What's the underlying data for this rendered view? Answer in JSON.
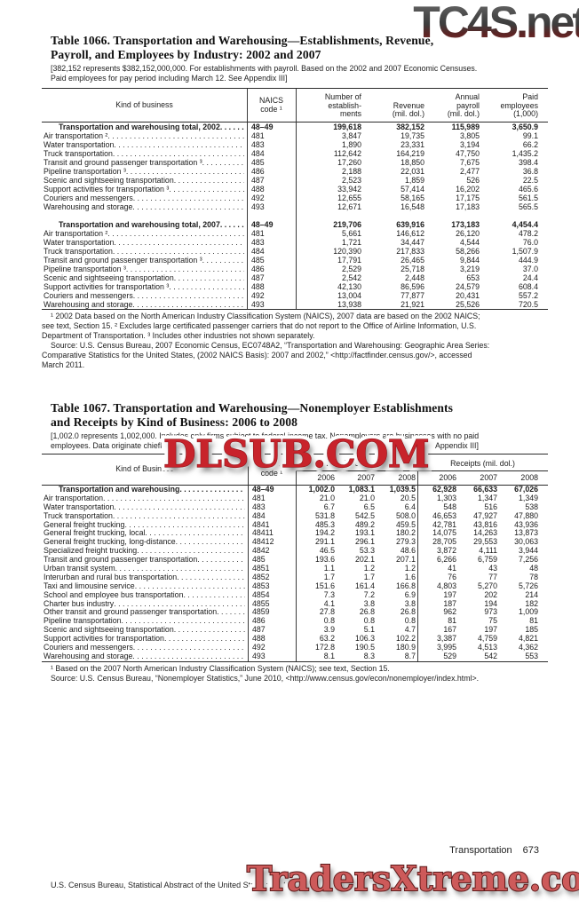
{
  "watermarks": {
    "top": "TC4S.net",
    "middle": "DLSUB.COM",
    "bottom": "TradersXtreme.com"
  },
  "table1066": {
    "title_lines": [
      "Table 1066. Transportation and Warehousing—Establishments, Revenue,",
      "Payroll, and Employees by Industry: 2002 and 2007"
    ],
    "note_lines": [
      "[382,152 represents $382,152,000,000. For establishments with payroll. Based on the 2002 and 2007 Economic Censuses.",
      "Paid employees for pay period including March 12. See Appendix III]"
    ],
    "header": {
      "kind": "Kind of business",
      "naics": "NAICS\ncode ¹",
      "cols": [
        "Number of\nestablish-\nments",
        "Revenue\n(mil. dol.)",
        "Annual\npayroll\n(mil. dol.)",
        "Paid\nemployees\n(1,000)"
      ]
    },
    "sections": [
      {
        "rows": [
          {
            "label": "Transportation and warehousing total, 2002",
            "naics": "48–49",
            "bold": true,
            "values": [
              "199,618",
              "382,152",
              "115,989",
              "3,650.9"
            ]
          },
          {
            "label": "Air transportation ²",
            "naics": "481",
            "values": [
              "3,847",
              "19,735",
              "3,805",
              "99.1"
            ]
          },
          {
            "label": "Water transportation",
            "naics": "483",
            "values": [
              "1,890",
              "23,331",
              "3,194",
              "66.2"
            ]
          },
          {
            "label": "Truck transportation",
            "naics": "484",
            "values": [
              "112,642",
              "164,219",
              "47,750",
              "1,435.2"
            ]
          },
          {
            "label": "Transit and ground passenger transportation ³",
            "naics": "485",
            "values": [
              "17,260",
              "18,850",
              "7,675",
              "398.4"
            ]
          },
          {
            "label": "Pipeline transportation ³",
            "naics": "486",
            "values": [
              "2,188",
              "22,031",
              "2,477",
              "36.8"
            ]
          },
          {
            "label": "Scenic and sightseeing transportation",
            "naics": "487",
            "values": [
              "2,523",
              "1,859",
              "526",
              "22.5"
            ]
          },
          {
            "label": "Support activities for transportation ³",
            "naics": "488",
            "values": [
              "33,942",
              "57,414",
              "16,202",
              "465.6"
            ]
          },
          {
            "label": "Couriers and messengers",
            "naics": "492",
            "values": [
              "12,655",
              "58,165",
              "17,175",
              "561.5"
            ]
          },
          {
            "label": "Warehousing and storage",
            "naics": "493",
            "values": [
              "12,671",
              "16,548",
              "17,183",
              "565.5"
            ]
          }
        ]
      },
      {
        "rows": [
          {
            "label": "Transportation and warehousing total, 2007",
            "naics": "48–49",
            "bold": true,
            "values": [
              "219,706",
              "639,916",
              "173,183",
              "4,454.4"
            ]
          },
          {
            "label": "Air transportation ²",
            "naics": "481",
            "values": [
              "5,661",
              "146,612",
              "26,120",
              "478.2"
            ]
          },
          {
            "label": "Water transportation",
            "naics": "483",
            "values": [
              "1,721",
              "34,447",
              "4,544",
              "76.0"
            ]
          },
          {
            "label": "Truck transportation",
            "naics": "484",
            "values": [
              "120,390",
              "217,833",
              "58,266",
              "1,507.9"
            ]
          },
          {
            "label": "Transit and ground passenger transportation ³",
            "naics": "485",
            "values": [
              "17,791",
              "26,465",
              "9,844",
              "444.9"
            ]
          },
          {
            "label": "Pipeline transportation ³",
            "naics": "486",
            "values": [
              "2,529",
              "25,718",
              "3,219",
              "37.0"
            ]
          },
          {
            "label": "Scenic and sightseeing transportation",
            "naics": "487",
            "values": [
              "2,542",
              "2,448",
              "653",
              "24.4"
            ]
          },
          {
            "label": "Support activities for transportation ³",
            "naics": "488",
            "values": [
              "42,130",
              "86,596",
              "24,579",
              "608.4"
            ]
          },
          {
            "label": "Couriers and messengers",
            "naics": "492",
            "values": [
              "13,004",
              "77,877",
              "20,431",
              "557.2"
            ]
          },
          {
            "label": "Warehousing and storage",
            "naics": "493",
            "values": [
              "13,938",
              "21,921",
              "25,526",
              "720.5"
            ]
          }
        ]
      }
    ],
    "footnote_lines": [
      "¹ 2002 Data based on the North American Industry Classification System (NAICS), 2007 data are based on the 2002 NAICS;",
      "see text, Section 15. ² Excludes large certificated passenger carriers that do not report to the Office of Airline Information, U.S.",
      "Department of Transportation. ³ Includes other industries not shown separately."
    ],
    "source_lines": [
      "Source: U.S. Census Bureau, 2007 Economic Census, EC0748A2, “Transportation and Warehousing: Geographic Area Series:",
      "Comparative Statistics for the United States, (2002 NAICS Basis): 2007 and 2002,” <http://factfinder.census.gov/>, accessed",
      "March 2011."
    ]
  },
  "table1067": {
    "title_lines": [
      "Table 1067. Transportation and Warehousing—Nonemployer Establishments",
      "and Receipts by Kind of Business: 2006 to 2008"
    ],
    "note_line1": "[1,002.0 represents 1,002,000. Includes only firms subject to federal income tax. Nonemployers are businesses with no paid",
    "note_line2_left": "employees. Data originate chiefl",
    "note_line2_right": "Appendix III]",
    "header": {
      "kind": "Kind of Business",
      "naics": "NAICS\ncode ¹",
      "group_establishments": "Establishments (1,000)",
      "group_receipts": "Receipts (mil. dol.)",
      "years": [
        "2006",
        "2007",
        "2008"
      ]
    },
    "rows": [
      {
        "label": "Transportation and warehousing",
        "naics": "48–49",
        "bold": true,
        "values": [
          "1,002.0",
          "1,083.1",
          "1,039.5",
          "62,928",
          "66,633",
          "67,026"
        ]
      },
      {
        "label": "Air transportation",
        "naics": "481",
        "values": [
          "21.0",
          "21.0",
          "20.5",
          "1,303",
          "1,347",
          "1,349"
        ]
      },
      {
        "label": "Water transportation",
        "naics": "483",
        "values": [
          "6.7",
          "6.5",
          "6.4",
          "548",
          "516",
          "538"
        ]
      },
      {
        "label": "Truck transportation",
        "naics": "484",
        "values": [
          "531.8",
          "542.5",
          "508.0",
          "46,653",
          "47,927",
          "47,880"
        ]
      },
      {
        "label": "General freight trucking",
        "naics": "4841",
        "values": [
          "485.3",
          "489.2",
          "459.5",
          "42,781",
          "43,816",
          "43,936"
        ]
      },
      {
        "label": "General freight trucking, local",
        "naics": "48411",
        "values": [
          "194.2",
          "193.1",
          "180.2",
          "14,075",
          "14,263",
          "13,873"
        ]
      },
      {
        "label": "General freight trucking, long-distance",
        "naics": "48412",
        "values": [
          "291.1",
          "296.1",
          "279.3",
          "28,705",
          "29,553",
          "30,063"
        ]
      },
      {
        "label": "Specialized freight trucking",
        "naics": "4842",
        "values": [
          "46.5",
          "53.3",
          "48.6",
          "3,872",
          "4,111",
          "3,944"
        ]
      },
      {
        "label": "Transit and ground passenger transportation",
        "naics": "485",
        "values": [
          "193.6",
          "202.1",
          "207.1",
          "6,266",
          "6,759",
          "7,256"
        ]
      },
      {
        "label": "Urban transit system",
        "naics": "4851",
        "values": [
          "1.1",
          "1.2",
          "1.2",
          "41",
          "43",
          "48"
        ]
      },
      {
        "label": "Interurban and rural bus transportation",
        "naics": "4852",
        "values": [
          "1.7",
          "1.7",
          "1.6",
          "76",
          "77",
          "78"
        ]
      },
      {
        "label": "Taxi and limousine service",
        "naics": "4853",
        "values": [
          "151.6",
          "161.4",
          "166.8",
          "4,803",
          "5,270",
          "5,726"
        ]
      },
      {
        "label": "School and employee bus transportation",
        "naics": "4854",
        "values": [
          "7.3",
          "7.2",
          "6.9",
          "197",
          "202",
          "214"
        ]
      },
      {
        "label": "Charter bus industry",
        "naics": "4855",
        "values": [
          "4.1",
          "3.8",
          "3.8",
          "187",
          "194",
          "182"
        ]
      },
      {
        "label": "Other transit and ground passenger transportation",
        "naics": "4859",
        "values": [
          "27.8",
          "26.8",
          "26.8",
          "962",
          "973",
          "1,009"
        ]
      },
      {
        "label": "Pipeline transportation",
        "naics": "486",
        "values": [
          "0.8",
          "0.8",
          "0.8",
          "81",
          "75",
          "81"
        ]
      },
      {
        "label": "Scenic and sightseeing transportation",
        "naics": "487",
        "values": [
          "3.9",
          "5.1",
          "4.7",
          "167",
          "197",
          "185"
        ]
      },
      {
        "label": "Support activities for transportation",
        "naics": "488",
        "values": [
          "63.2",
          "106.3",
          "102.2",
          "3,387",
          "4,759",
          "4,821"
        ]
      },
      {
        "label": "Couriers and messengers",
        "naics": "492",
        "values": [
          "172.8",
          "190.5",
          "180.9",
          "3,995",
          "4,513",
          "4,362"
        ]
      },
      {
        "label": "Warehousing and storage",
        "naics": "493",
        "values": [
          "8.1",
          "8.3",
          "8.7",
          "529",
          "542",
          "553"
        ]
      }
    ],
    "footnote": "¹ Based on the 2007 North American Industry Classification System (NAICS); see text, Section 15.",
    "source": "Source: U.S. Census Bureau, “Nonemployer Statistics,” June 2010, <http://www.census.gov/econ/nonemployer/index.html>."
  },
  "footer": {
    "section": "Transportation",
    "page": "673",
    "bureau": "U.S. Census Bureau, Statistical Abstract of the United States: 2012"
  }
}
